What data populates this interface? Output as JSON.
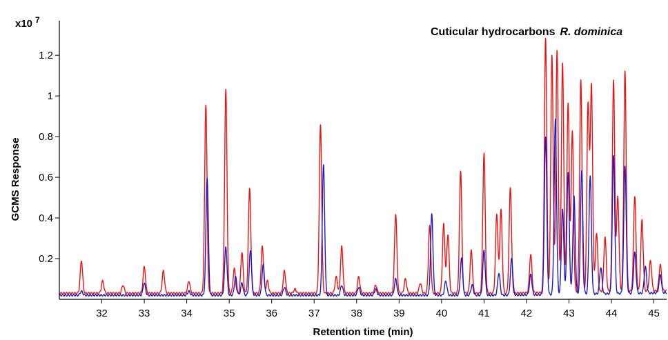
{
  "chart_data": {
    "type": "line",
    "title": "Cuticular hydrocarbons",
    "title_species": "R. dominica",
    "xlabel": "Retention time (min)",
    "ylabel": "GCMS Response",
    "y_multiplier_label": "x10",
    "y_multiplier_exp": "7",
    "xlim": [
      31.0,
      45.3
    ],
    "ylim": [
      0.0,
      1.37
    ],
    "x_ticks": [
      "32",
      "33",
      "34",
      "35",
      "36",
      "37",
      "38",
      "39",
      "40",
      "41",
      "42",
      "43",
      "44",
      "45"
    ],
    "y_ticks": [
      "0.2",
      "0.4",
      "0.6",
      "0.8",
      "1",
      "1.2"
    ],
    "grid": false,
    "series": [
      {
        "color": "#ee1111",
        "baseline": 0.03,
        "peaks": [
          [
            31.52,
            0.19
          ],
          [
            32.02,
            0.09
          ],
          [
            32.5,
            0.07
          ],
          [
            33.0,
            0.16
          ],
          [
            33.45,
            0.14
          ],
          [
            34.05,
            0.09
          ],
          [
            34.45,
            0.96
          ],
          [
            34.92,
            1.03
          ],
          [
            35.12,
            0.15
          ],
          [
            35.3,
            0.23
          ],
          [
            35.48,
            0.55
          ],
          [
            35.78,
            0.26
          ],
          [
            35.9,
            0.09
          ],
          [
            36.3,
            0.14
          ],
          [
            36.55,
            0.05
          ],
          [
            37.15,
            0.86
          ],
          [
            37.52,
            0.11
          ],
          [
            37.65,
            0.26
          ],
          [
            38.05,
            0.11
          ],
          [
            38.45,
            0.07
          ],
          [
            38.92,
            0.42
          ],
          [
            39.15,
            0.1
          ],
          [
            39.5,
            0.08
          ],
          [
            39.72,
            0.36
          ],
          [
            40.05,
            0.37
          ],
          [
            40.15,
            0.32
          ],
          [
            40.45,
            0.63
          ],
          [
            40.7,
            0.24
          ],
          [
            41.0,
            0.72
          ],
          [
            41.3,
            0.42
          ],
          [
            41.4,
            0.44
          ],
          [
            41.62,
            0.55
          ],
          [
            42.1,
            0.22
          ],
          [
            42.45,
            1.28
          ],
          [
            42.6,
            1.2
          ],
          [
            42.72,
            1.22
          ],
          [
            42.85,
            1.16
          ],
          [
            42.98,
            0.96
          ],
          [
            43.08,
            0.82
          ],
          [
            43.28,
            1.07
          ],
          [
            43.45,
            0.95
          ],
          [
            43.53,
            1.04
          ],
          [
            43.65,
            0.32
          ],
          [
            43.85,
            0.3
          ],
          [
            44.05,
            1.07
          ],
          [
            44.15,
            0.5
          ],
          [
            44.32,
            1.11
          ],
          [
            44.55,
            0.5
          ],
          [
            44.72,
            0.38
          ],
          [
            44.92,
            0.18
          ],
          [
            45.15,
            0.16
          ]
        ]
      },
      {
        "color": "#1a1acc",
        "baseline": 0.02,
        "peaks": [
          [
            31.52,
            0.04
          ],
          [
            33.0,
            0.08
          ],
          [
            34.05,
            0.04
          ],
          [
            34.48,
            0.6
          ],
          [
            34.92,
            0.26
          ],
          [
            35.15,
            0.11
          ],
          [
            35.3,
            0.08
          ],
          [
            35.5,
            0.24
          ],
          [
            35.8,
            0.17
          ],
          [
            36.3,
            0.06
          ],
          [
            37.22,
            0.66
          ],
          [
            37.65,
            0.07
          ],
          [
            38.05,
            0.06
          ],
          [
            38.45,
            0.05
          ],
          [
            38.92,
            0.1
          ],
          [
            39.77,
            0.42
          ],
          [
            40.1,
            0.09
          ],
          [
            40.47,
            0.2
          ],
          [
            40.72,
            0.07
          ],
          [
            41.0,
            0.24
          ],
          [
            41.35,
            0.13
          ],
          [
            41.65,
            0.2
          ],
          [
            42.1,
            0.12
          ],
          [
            42.45,
            0.8
          ],
          [
            42.68,
            0.88
          ],
          [
            42.85,
            0.44
          ],
          [
            42.98,
            0.62
          ],
          [
            43.12,
            0.5
          ],
          [
            43.3,
            0.63
          ],
          [
            43.5,
            0.6
          ],
          [
            43.75,
            0.15
          ],
          [
            44.05,
            0.7
          ],
          [
            44.32,
            0.65
          ],
          [
            44.55,
            0.22
          ],
          [
            44.8,
            0.15
          ],
          [
            45.15,
            0.11
          ]
        ]
      }
    ]
  }
}
